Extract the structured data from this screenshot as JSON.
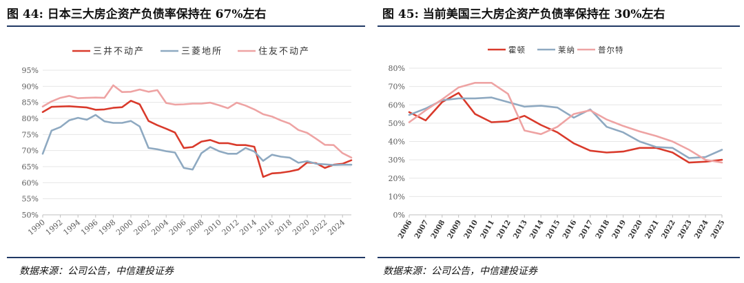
{
  "left": {
    "title": "图 44: 日本三大房企资产负债率保持在 67%左右",
    "source": "数据来源：公司公告，中信建投证券"
  },
  "right": {
    "title": "图 45: 当前美国三大房企资产负债率保持在 30%左右",
    "source": "数据来源：公司公告，中信建投证券"
  },
  "chart_data": [
    {
      "type": "line",
      "title": "",
      "xlabel": "",
      "ylabel": "",
      "ylim": [
        50,
        95
      ],
      "y_ticks": [
        "50%",
        "55%",
        "60%",
        "65%",
        "70%",
        "75%",
        "80%",
        "85%",
        "90%",
        "95%"
      ],
      "x": [
        1990,
        1991,
        1992,
        1993,
        1994,
        1995,
        1996,
        1997,
        1998,
        1999,
        2000,
        2001,
        2002,
        2003,
        2004,
        2005,
        2006,
        2007,
        2008,
        2009,
        2010,
        2011,
        2012,
        2013,
        2014,
        2015,
        2016,
        2017,
        2018,
        2019,
        2020,
        2021,
        2022,
        2023,
        2024,
        2025
      ],
      "x_ticks": [
        "1990",
        "1992",
        "1994",
        "1996",
        "1998",
        "2000",
        "2002",
        "2004",
        "2006",
        "2008",
        "2010",
        "2012",
        "2014",
        "2016",
        "2018",
        "2020",
        "2022",
        "2024"
      ],
      "grid": true,
      "legend_position": "top",
      "series": [
        {
          "name": "三井不动产",
          "color": "#d93a2b",
          "values": [
            82,
            83.6,
            83.7,
            83.8,
            83.6,
            83.4,
            82.7,
            82.8,
            83.3,
            83.5,
            85.5,
            84.4,
            79.2,
            77.9,
            76.8,
            75.6,
            70.8,
            71.1,
            72.8,
            73.3,
            72.3,
            72.3,
            71.7,
            71.7,
            71.2,
            61.8,
            62.9,
            63.1,
            63.5,
            64.1,
            66.3,
            66.1,
            64.6,
            65.6,
            65.9,
            67
          ]
        },
        {
          "name": "三菱地所",
          "color": "#8ea9c1",
          "values": [
            69,
            76.2,
            77.3,
            79.4,
            80.2,
            79.6,
            81.1,
            79.1,
            78.6,
            78.6,
            79.2,
            77.5,
            70.8,
            70.4,
            69.8,
            69.4,
            64.6,
            64.1,
            69.2,
            71.1,
            69.8,
            69,
            69,
            70.8,
            69.7,
            66.8,
            68.7,
            68.1,
            67.8,
            66.2,
            66.7,
            65.9,
            65.7,
            65.5,
            65.6,
            65.6
          ]
        },
        {
          "name": "住友不动产",
          "color": "#eea3a3",
          "values": [
            83.7,
            85.3,
            86.4,
            87,
            86.3,
            86.4,
            86.5,
            86.4,
            90.3,
            88.2,
            88.3,
            89,
            88.3,
            88.8,
            84.8,
            84.3,
            84.4,
            84.6,
            84.6,
            84.9,
            84.1,
            83.2,
            84.9,
            84,
            82.8,
            81.3,
            80.6,
            79.4,
            78.4,
            76.4,
            75.5,
            73.7,
            71.8,
            71.7,
            69.2,
            67.8
          ]
        }
      ]
    },
    {
      "type": "line",
      "title": "",
      "xlabel": "",
      "ylabel": "",
      "ylim": [
        0,
        80
      ],
      "y_ticks": [
        "0%",
        "10%",
        "20%",
        "30%",
        "40%",
        "50%",
        "60%",
        "70%",
        "80%"
      ],
      "x": [
        "2006",
        "2007",
        "2008",
        "2009",
        "2010",
        "2011",
        "2012",
        "2013",
        "2014",
        "2015",
        "2016",
        "2017",
        "2018",
        "2019",
        "2020",
        "2021",
        "2022",
        "2023",
        "2024",
        "2025"
      ],
      "x_ticks": [
        "2006",
        "2007",
        "2008",
        "2009",
        "2010",
        "2011",
        "2012",
        "2013",
        "2014",
        "2015",
        "2016",
        "2017",
        "2018",
        "2019",
        "2020",
        "2021",
        "2022",
        "2023",
        "2024",
        "2025"
      ],
      "grid": true,
      "legend_position": "top",
      "series": [
        {
          "name": "霍顿",
          "color": "#d93a2b",
          "values": [
            56,
            51.5,
            61.5,
            66.5,
            55,
            50.5,
            51,
            54,
            49,
            45,
            39,
            35,
            34,
            34.5,
            36.5,
            36.5,
            34,
            28.5,
            29,
            30
          ]
        },
        {
          "name": "莱纳",
          "color": "#8ea9c1",
          "values": [
            54.5,
            58,
            62.5,
            63.5,
            63.5,
            64,
            61.5,
            59,
            59.5,
            58.5,
            53,
            57.5,
            48,
            45,
            40,
            37,
            36.5,
            31,
            31.5,
            35.5
          ]
        },
        {
          "name": "普尔特",
          "color": "#eea3a3",
          "values": [
            50.5,
            57,
            63,
            69.5,
            72,
            72,
            66,
            46,
            44,
            48,
            55,
            57,
            52,
            48.5,
            45.5,
            43,
            40,
            35.5,
            30,
            28.5
          ]
        }
      ]
    }
  ]
}
